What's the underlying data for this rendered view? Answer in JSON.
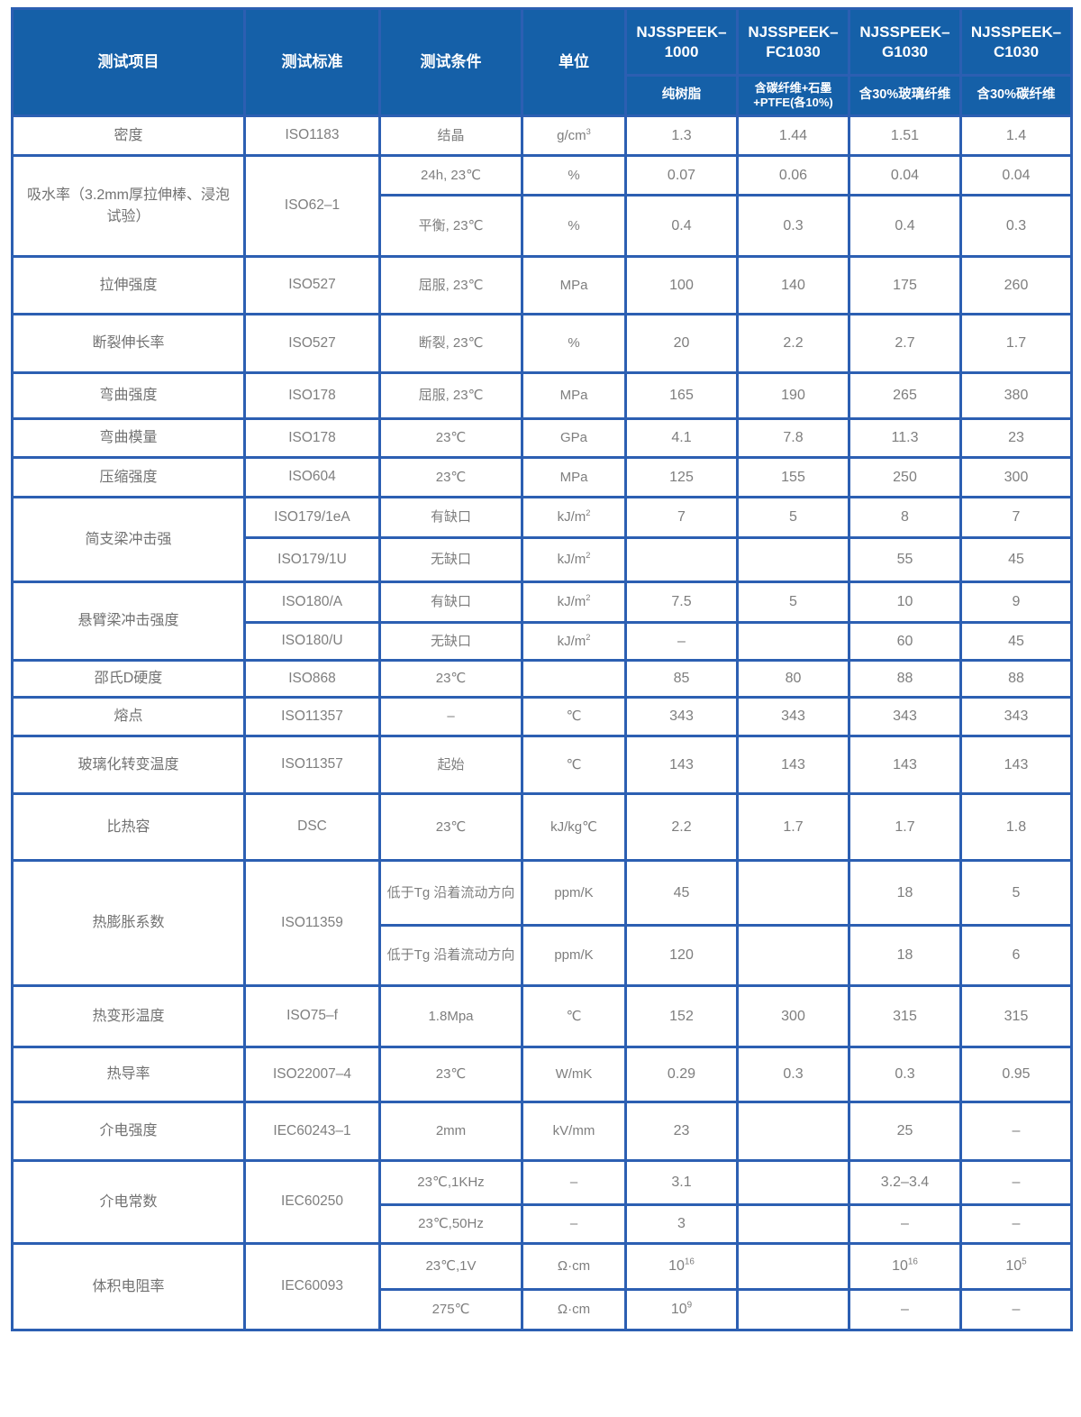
{
  "theme": {
    "header_bg": "#1560a8",
    "border_color": "#2c5fb2",
    "header_text": "#ffffff",
    "body_text": "#7e7e7e"
  },
  "table": {
    "columns": [
      "测试项目",
      "测试标准",
      "测试条件",
      "单位"
    ],
    "products": [
      {
        "model": "NJSSPEEK–1000",
        "desc": "纯树脂"
      },
      {
        "model": "NJSSPEEK–FC1030",
        "desc": "含碳纤维+石墨+PTFE(各10%)"
      },
      {
        "model": "NJSSPEEK–G1030",
        "desc": "含30%玻璃纤维"
      },
      {
        "model": "NJSSPEEK–C1030",
        "desc": "含30%碳纤维"
      }
    ],
    "rows": [
      {
        "cells": [
          {
            "t": "密度",
            "c": "item"
          },
          {
            "t": "ISO1183",
            "c": "std"
          },
          {
            "t": "结晶",
            "c": "cond"
          },
          {
            "t": "g/cm^3",
            "c": "unit"
          },
          {
            "t": "1.3",
            "c": "val"
          },
          {
            "t": "1.44",
            "c": "val"
          },
          {
            "t": "1.51",
            "c": "val"
          },
          {
            "t": "1.4",
            "c": "val"
          }
        ]
      },
      {
        "cells": [
          {
            "t": "吸水率（3.2mm厚拉伸棒、浸泡试验）",
            "c": "item",
            "rs": 2
          },
          {
            "t": "ISO62–1",
            "c": "std",
            "rs": 2
          },
          {
            "t": "24h, 23℃",
            "c": "cond"
          },
          {
            "t": "%",
            "c": "unit"
          },
          {
            "t": "0.07",
            "c": "val"
          },
          {
            "t": "0.06",
            "c": "val"
          },
          {
            "t": "0.04",
            "c": "val"
          },
          {
            "t": "0.04",
            "c": "val"
          }
        ]
      },
      {
        "cells": [
          {
            "t": "平衡, 23℃",
            "c": "cond"
          },
          {
            "t": "%",
            "c": "unit"
          },
          {
            "t": "0.4",
            "c": "val"
          },
          {
            "t": "0.3",
            "c": "val"
          },
          {
            "t": "0.4",
            "c": "val"
          },
          {
            "t": "0.3",
            "c": "val"
          }
        ]
      },
      {
        "cells": [
          {
            "t": "拉伸强度",
            "c": "item"
          },
          {
            "t": "ISO527",
            "c": "std"
          },
          {
            "t": "屈服, 23℃",
            "c": "cond"
          },
          {
            "t": "MPa",
            "c": "unit"
          },
          {
            "t": "100",
            "c": "val"
          },
          {
            "t": "140",
            "c": "val"
          },
          {
            "t": "175",
            "c": "val"
          },
          {
            "t": "260",
            "c": "val"
          }
        ]
      },
      {
        "cells": [
          {
            "t": "断裂伸长率",
            "c": "item"
          },
          {
            "t": "ISO527",
            "c": "std"
          },
          {
            "t": "断裂, 23℃",
            "c": "cond"
          },
          {
            "t": "%",
            "c": "unit"
          },
          {
            "t": "20",
            "c": "val"
          },
          {
            "t": "2.2",
            "c": "val"
          },
          {
            "t": "2.7",
            "c": "val"
          },
          {
            "t": "1.7",
            "c": "val"
          }
        ]
      },
      {
        "cells": [
          {
            "t": "弯曲强度",
            "c": "item"
          },
          {
            "t": "ISO178",
            "c": "std"
          },
          {
            "t": "屈服, 23℃",
            "c": "cond"
          },
          {
            "t": "MPa",
            "c": "unit"
          },
          {
            "t": "165",
            "c": "val"
          },
          {
            "t": "190",
            "c": "val"
          },
          {
            "t": "265",
            "c": "val"
          },
          {
            "t": "380",
            "c": "val"
          }
        ]
      },
      {
        "cells": [
          {
            "t": "弯曲模量",
            "c": "item"
          },
          {
            "t": "ISO178",
            "c": "std"
          },
          {
            "t": "23℃",
            "c": "cond"
          },
          {
            "t": "GPa",
            "c": "unit"
          },
          {
            "t": "4.1",
            "c": "val"
          },
          {
            "t": "7.8",
            "c": "val"
          },
          {
            "t": "11.3",
            "c": "val"
          },
          {
            "t": "23",
            "c": "val"
          }
        ]
      },
      {
        "cells": [
          {
            "t": "压缩强度",
            "c": "item"
          },
          {
            "t": "ISO604",
            "c": "std"
          },
          {
            "t": "23℃",
            "c": "cond"
          },
          {
            "t": "MPa",
            "c": "unit"
          },
          {
            "t": "125",
            "c": "val"
          },
          {
            "t": "155",
            "c": "val"
          },
          {
            "t": "250",
            "c": "val"
          },
          {
            "t": "300",
            "c": "val"
          }
        ]
      },
      {
        "cells": [
          {
            "t": "简支梁冲击强",
            "c": "item",
            "rs": 2
          },
          {
            "t": "ISO179/1eA",
            "c": "std"
          },
          {
            "t": "有缺口",
            "c": "cond"
          },
          {
            "t": "kJ/m^2",
            "c": "unit"
          },
          {
            "t": "7",
            "c": "val"
          },
          {
            "t": "5",
            "c": "val"
          },
          {
            "t": "8",
            "c": "val"
          },
          {
            "t": "7",
            "c": "val"
          }
        ]
      },
      {
        "cells": [
          {
            "t": "ISO179/1U",
            "c": "std"
          },
          {
            "t": "无缺口",
            "c": "cond"
          },
          {
            "t": "kJ/m^2",
            "c": "unit"
          },
          {
            "t": "",
            "c": "val"
          },
          {
            "t": "",
            "c": "val"
          },
          {
            "t": "55",
            "c": "val"
          },
          {
            "t": "45",
            "c": "val"
          }
        ]
      },
      {
        "cells": [
          {
            "t": "悬臂梁冲击强度",
            "c": "item",
            "rs": 2
          },
          {
            "t": "ISO180/A",
            "c": "std"
          },
          {
            "t": "有缺口",
            "c": "cond"
          },
          {
            "t": "kJ/m^2",
            "c": "unit"
          },
          {
            "t": "7.5",
            "c": "val"
          },
          {
            "t": "5",
            "c": "val"
          },
          {
            "t": "10",
            "c": "val"
          },
          {
            "t": "9",
            "c": "val"
          }
        ]
      },
      {
        "cells": [
          {
            "t": "ISO180/U",
            "c": "std"
          },
          {
            "t": "无缺口",
            "c": "cond"
          },
          {
            "t": "kJ/m^2",
            "c": "unit"
          },
          {
            "t": "–",
            "c": "val"
          },
          {
            "t": "",
            "c": "val"
          },
          {
            "t": "60",
            "c": "val"
          },
          {
            "t": "45",
            "c": "val"
          }
        ]
      },
      {
        "cells": [
          {
            "t": "邵氏D硬度",
            "c": "item"
          },
          {
            "t": "ISO868",
            "c": "std"
          },
          {
            "t": "23℃",
            "c": "cond"
          },
          {
            "t": "",
            "c": "unit"
          },
          {
            "t": "85",
            "c": "val"
          },
          {
            "t": "80",
            "c": "val"
          },
          {
            "t": "88",
            "c": "val"
          },
          {
            "t": "88",
            "c": "val"
          }
        ]
      },
      {
        "cells": [
          {
            "t": "熔点",
            "c": "item"
          },
          {
            "t": "ISO11357",
            "c": "std"
          },
          {
            "t": "–",
            "c": "cond"
          },
          {
            "t": "℃",
            "c": "unit"
          },
          {
            "t": "343",
            "c": "val"
          },
          {
            "t": "343",
            "c": "val"
          },
          {
            "t": "343",
            "c": "val"
          },
          {
            "t": "343",
            "c": "val"
          }
        ]
      },
      {
        "cells": [
          {
            "t": "玻璃化转变温度",
            "c": "item"
          },
          {
            "t": "ISO11357",
            "c": "std"
          },
          {
            "t": "起始",
            "c": "cond"
          },
          {
            "t": "℃",
            "c": "unit"
          },
          {
            "t": "143",
            "c": "val"
          },
          {
            "t": "143",
            "c": "val"
          },
          {
            "t": "143",
            "c": "val"
          },
          {
            "t": "143",
            "c": "val"
          }
        ]
      },
      {
        "cells": [
          {
            "t": "比热容",
            "c": "item"
          },
          {
            "t": "DSC",
            "c": "std"
          },
          {
            "t": "23℃",
            "c": "cond"
          },
          {
            "t": "kJ/kg℃",
            "c": "unit"
          },
          {
            "t": "2.2",
            "c": "val"
          },
          {
            "t": "1.7",
            "c": "val"
          },
          {
            "t": "1.7",
            "c": "val"
          },
          {
            "t": "1.8",
            "c": "val"
          }
        ]
      },
      {
        "cells": [
          {
            "t": "热膨胀系数",
            "c": "item",
            "rs": 2
          },
          {
            "t": "ISO11359",
            "c": "std",
            "rs": 2
          },
          {
            "t": "低于Tg 沿着流动方向",
            "c": "cond"
          },
          {
            "t": "ppm/K",
            "c": "unit"
          },
          {
            "t": "45",
            "c": "val"
          },
          {
            "t": "",
            "c": "val"
          },
          {
            "t": "18",
            "c": "val"
          },
          {
            "t": "5",
            "c": "val"
          }
        ]
      },
      {
        "cells": [
          {
            "t": "低于Tg 沿着流动方向",
            "c": "cond"
          },
          {
            "t": "ppm/K",
            "c": "unit"
          },
          {
            "t": "120",
            "c": "val"
          },
          {
            "t": "",
            "c": "val"
          },
          {
            "t": "18",
            "c": "val"
          },
          {
            "t": "6",
            "c": "val"
          }
        ]
      },
      {
        "cells": [
          {
            "t": "热变形温度",
            "c": "item"
          },
          {
            "t": "ISO75–f",
            "c": "std"
          },
          {
            "t": "1.8Mpa",
            "c": "cond"
          },
          {
            "t": "℃",
            "c": "unit"
          },
          {
            "t": "152",
            "c": "val"
          },
          {
            "t": "300",
            "c": "val"
          },
          {
            "t": "315",
            "c": "val"
          },
          {
            "t": "315",
            "c": "val"
          }
        ]
      },
      {
        "cells": [
          {
            "t": "热导率",
            "c": "item"
          },
          {
            "t": "ISO22007–4",
            "c": "std"
          },
          {
            "t": "23℃",
            "c": "cond"
          },
          {
            "t": "W/mK",
            "c": "unit"
          },
          {
            "t": "0.29",
            "c": "val"
          },
          {
            "t": "0.3",
            "c": "val"
          },
          {
            "t": "0.3",
            "c": "val"
          },
          {
            "t": "0.95",
            "c": "val"
          }
        ]
      },
      {
        "cells": [
          {
            "t": "介电强度",
            "c": "item"
          },
          {
            "t": "IEC60243–1",
            "c": "std"
          },
          {
            "t": "2mm",
            "c": "cond"
          },
          {
            "t": "kV/mm",
            "c": "unit"
          },
          {
            "t": "23",
            "c": "val"
          },
          {
            "t": "",
            "c": "val"
          },
          {
            "t": "25",
            "c": "val"
          },
          {
            "t": "–",
            "c": "val"
          }
        ]
      },
      {
        "cells": [
          {
            "t": "介电常数",
            "c": "item",
            "rs": 2
          },
          {
            "t": "IEC60250",
            "c": "std",
            "rs": 2
          },
          {
            "t": "23℃,1KHz",
            "c": "cond"
          },
          {
            "t": "–",
            "c": "unit"
          },
          {
            "t": "3.1",
            "c": "val"
          },
          {
            "t": "",
            "c": "val"
          },
          {
            "t": "3.2–3.4",
            "c": "val"
          },
          {
            "t": "–",
            "c": "val"
          }
        ]
      },
      {
        "cells": [
          {
            "t": "23℃,50Hz",
            "c": "cond"
          },
          {
            "t": "–",
            "c": "unit"
          },
          {
            "t": "3",
            "c": "val"
          },
          {
            "t": "",
            "c": "val"
          },
          {
            "t": "–",
            "c": "val"
          },
          {
            "t": "–",
            "c": "val"
          }
        ]
      },
      {
        "cells": [
          {
            "t": "体积电阻率",
            "c": "item",
            "rs": 2
          },
          {
            "t": "IEC60093",
            "c": "std",
            "rs": 2
          },
          {
            "t": "23℃,1V",
            "c": "cond"
          },
          {
            "t": "Ω·cm",
            "c": "unit"
          },
          {
            "t": "10^16",
            "c": "val"
          },
          {
            "t": "",
            "c": "val"
          },
          {
            "t": "10^16",
            "c": "val"
          },
          {
            "t": "10^5",
            "c": "val"
          }
        ]
      },
      {
        "cells": [
          {
            "t": "275℃",
            "c": "cond"
          },
          {
            "t": "Ω·cm",
            "c": "unit"
          },
          {
            "t": "10^9",
            "c": "val"
          },
          {
            "t": "",
            "c": "val"
          },
          {
            "t": "–",
            "c": "val"
          },
          {
            "t": "–",
            "c": "val"
          }
        ]
      }
    ]
  }
}
